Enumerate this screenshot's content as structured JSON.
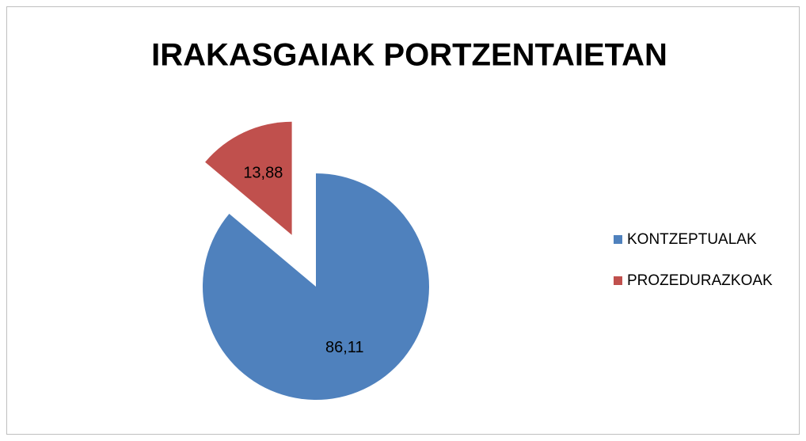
{
  "chart_data": {
    "type": "pie",
    "title": "IRAKASGAIAK PORTZENTAIETAN",
    "categories": [
      "KONTZEPTUALAK",
      "PROZEDURAZKOAK"
    ],
    "values": [
      86.11,
      13.88
    ],
    "value_labels": [
      "86,11",
      "13,88"
    ],
    "colors": [
      "#4f81bd",
      "#c0504d"
    ],
    "legend": "right"
  }
}
